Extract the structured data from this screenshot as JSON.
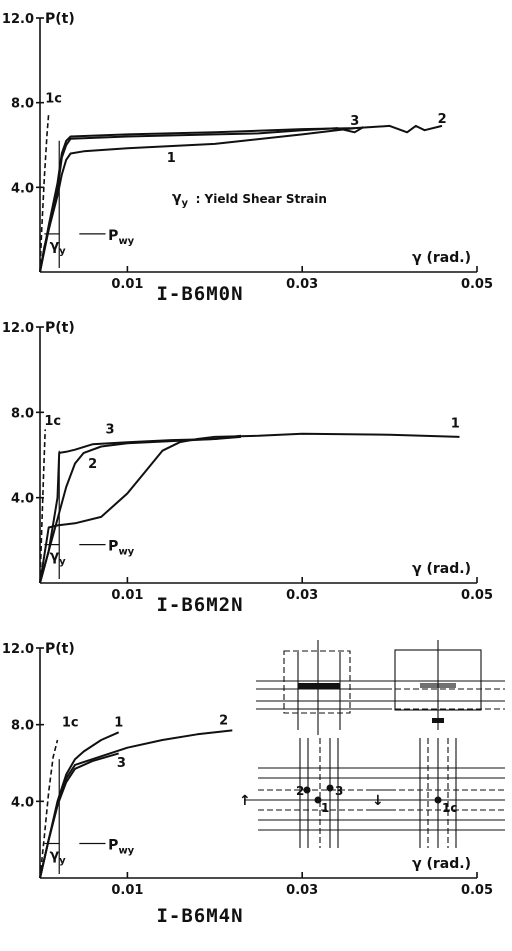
{
  "chart_data": [
    {
      "type": "line",
      "title": "I-B6M0N",
      "ylabel": "P(t)",
      "xlabel": "γ (rad.)",
      "xlim": [
        0,
        0.05
      ],
      "ylim": [
        0,
        12.0
      ],
      "x_ticks": [
        "0.01",
        "0.03",
        "0.05"
      ],
      "y_ticks": [
        "4.0",
        "8.0",
        "12.0"
      ],
      "annotation": ": Yield Shear Strain",
      "annotation_symbol": "γy",
      "yield_label": "γy",
      "pwy_label": "Pwy",
      "series": [
        {
          "name": "1",
          "x": [
            0,
            0.0005,
            0.001,
            0.0015,
            0.002,
            0.0025,
            0.003,
            0.0035,
            0.005,
            0.01,
            0.02,
            0.03,
            0.036
          ],
          "y": [
            0,
            1.2,
            2.0,
            2.8,
            3.6,
            4.6,
            5.3,
            5.6,
            5.7,
            5.85,
            6.05,
            6.5,
            6.8
          ]
        },
        {
          "name": "2",
          "x": [
            0,
            0.001,
            0.002,
            0.0025,
            0.003,
            0.0035,
            0.01,
            0.02,
            0.03,
            0.036,
            0.04,
            0.042,
            0.043,
            0.044,
            0.046
          ],
          "y": [
            0,
            2.2,
            4.2,
            5.6,
            6.2,
            6.4,
            6.5,
            6.6,
            6.75,
            6.8,
            6.9,
            6.6,
            6.9,
            6.7,
            6.9
          ]
        },
        {
          "name": "3",
          "x": [
            0,
            0.001,
            0.002,
            0.0025,
            0.003,
            0.0035,
            0.01,
            0.02,
            0.025,
            0.03,
            0.034,
            0.036,
            0.037
          ],
          "y": [
            0,
            2.0,
            3.9,
            5.4,
            6.0,
            6.3,
            6.4,
            6.5,
            6.55,
            6.7,
            6.8,
            6.6,
            6.85
          ]
        },
        {
          "name": "1c",
          "x": [
            0,
            0.0002,
            0.0005,
            0.0008,
            0.001
          ],
          "y": [
            0,
            2.0,
            4.5,
            6.5,
            7.5
          ]
        }
      ]
    },
    {
      "type": "line",
      "title": "I-B6M2N",
      "ylabel": "P(t)",
      "xlabel": "γ (rad.)",
      "xlim": [
        0,
        0.05
      ],
      "ylim": [
        0,
        12.0
      ],
      "x_ticks": [
        "0.01",
        "0.03",
        "0.05"
      ],
      "y_ticks": [
        "4.0",
        "8.0",
        "12.0"
      ],
      "yield_label": "γy",
      "pwy_label": "Pwy",
      "series": [
        {
          "name": "1",
          "x": [
            0,
            0.001,
            0.002,
            0.004,
            0.007,
            0.01,
            0.012,
            0.014,
            0.016,
            0.018,
            0.02,
            0.025,
            0.03,
            0.04,
            0.048
          ],
          "y": [
            0,
            2.6,
            2.7,
            2.8,
            3.1,
            4.2,
            5.2,
            6.2,
            6.6,
            6.75,
            6.85,
            6.9,
            7.0,
            6.95,
            6.85
          ]
        },
        {
          "name": "2",
          "x": [
            0,
            0.001,
            0.002,
            0.003,
            0.004,
            0.005,
            0.007,
            0.01,
            0.015,
            0.02,
            0.023
          ],
          "y": [
            0,
            1.5,
            3.0,
            4.5,
            5.6,
            6.1,
            6.4,
            6.55,
            6.65,
            6.75,
            6.85
          ]
        },
        {
          "name": "3",
          "x": [
            0,
            0.001,
            0.002,
            0.0022,
            0.003,
            0.004,
            0.006,
            0.01,
            0.015,
            0.02,
            0.023
          ],
          "y": [
            0,
            1.5,
            4.0,
            6.1,
            6.15,
            6.25,
            6.5,
            6.6,
            6.7,
            6.75,
            6.9
          ]
        },
        {
          "name": "1c",
          "x": [
            0,
            0.0002,
            0.0004,
            0.0006
          ],
          "y": [
            0,
            2.5,
            5.0,
            7.2
          ]
        }
      ]
    },
    {
      "type": "line",
      "title": "I-B6M4N",
      "ylabel": "P(t)",
      "xlabel": "γ (rad.)",
      "xlim": [
        0,
        0.05
      ],
      "ylim": [
        0,
        12.0
      ],
      "x_ticks": [
        "0.01",
        "0.03",
        "0.05"
      ],
      "y_ticks": [
        "4.0",
        "8.0",
        "12.0"
      ],
      "yield_label": "γy",
      "pwy_label": "Pwy",
      "inset_labels": {
        "left_arrow": "↑",
        "right_arrow": "↓",
        "gauges": [
          "2",
          "1",
          "3"
        ],
        "gauge_c": "1c"
      },
      "series": [
        {
          "name": "1",
          "x": [
            0,
            0.001,
            0.002,
            0.003,
            0.004,
            0.005,
            0.007,
            0.009
          ],
          "y": [
            0,
            2.0,
            4.0,
            5.4,
            6.2,
            6.6,
            7.2,
            7.6
          ]
        },
        {
          "name": "2",
          "x": [
            0,
            0.001,
            0.002,
            0.003,
            0.004,
            0.006,
            0.008,
            0.01,
            0.014,
            0.018,
            0.022
          ],
          "y": [
            0,
            2.0,
            3.8,
            5.2,
            5.9,
            6.2,
            6.5,
            6.8,
            7.2,
            7.5,
            7.7
          ]
        },
        {
          "name": "3",
          "x": [
            0,
            0.001,
            0.002,
            0.003,
            0.004,
            0.006,
            0.009
          ],
          "y": [
            0,
            2.0,
            3.8,
            5.0,
            5.7,
            6.1,
            6.5
          ]
        },
        {
          "name": "1c",
          "x": [
            0,
            0.0005,
            0.001,
            0.0015,
            0.002
          ],
          "y": [
            0,
            2.2,
            4.5,
            6.3,
            7.2
          ]
        }
      ]
    }
  ]
}
